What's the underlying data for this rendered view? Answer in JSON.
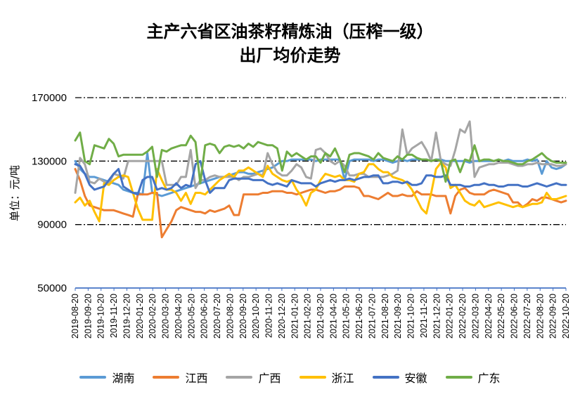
{
  "chart_data": {
    "type": "line",
    "title_lines": [
      "主产六省区油茶籽精炼油（压榨一级）",
      "出厂均价走势"
    ],
    "ylabel": "单位：元/吨",
    "ylim": [
      50000,
      170000
    ],
    "yticks": [
      50000,
      90000,
      130000,
      170000
    ],
    "ytick_labels": [
      "50000",
      "90000",
      "130000",
      "170000"
    ],
    "grid": "dash-dot horizontal at 90000, 130000, 170000",
    "legend_position": "bottom",
    "x_tick_labels": [
      "2019-08-20",
      "2019-09-20",
      "2019-10-20",
      "2019-11-20",
      "2019-12-20",
      "2020-01-20",
      "2020-02-20",
      "2020-03-20",
      "2020-04-20",
      "2020-05-20",
      "2020-06-20",
      "2020-07-20",
      "2020-08-20",
      "2020-09-20",
      "2020-10-20",
      "2020-11-20",
      "2020-12-20",
      "2021-01-20",
      "2021-02-20",
      "2021-03-20",
      "2021-04-20",
      "2021-05-20",
      "2021-06-20",
      "2021-07-20",
      "2021-08-20",
      "2021-09-20",
      "2021-10-20",
      "2021-11-20",
      "2021-12-20",
      "2022-01-20",
      "2022-02-20",
      "2022-03-20",
      "2022-04-20",
      "2022-05-20",
      "2022-06-20",
      "2022-07-20",
      "2022-08-20",
      "2022-09-20",
      "2022-10-20"
    ],
    "series": [
      {
        "name": "湖南",
        "color": "#5B9BD5",
        "values": [
          130000,
          125000,
          122000,
          120000,
          120000,
          119000,
          118000,
          117000,
          116000,
          115000,
          112000,
          111000,
          110000,
          110000,
          109000,
          135000,
          110000,
          109000,
          108000,
          109000,
          110000,
          111000,
          112000,
          113000,
          114000,
          115000,
          116000,
          117000,
          118000,
          119000,
          120000,
          120000,
          121000,
          122000,
          123000,
          123000,
          122000,
          122000,
          123000,
          124000,
          125000,
          126000,
          128000,
          130000,
          130000,
          131000,
          131000,
          131000,
          131000,
          131000,
          130000,
          131000,
          131000,
          131000,
          131000,
          131000,
          118000,
          130000,
          131000,
          131000,
          131000,
          131000,
          130000,
          131000,
          131000,
          130000,
          129000,
          130000,
          131000,
          130000,
          131000,
          131000,
          131000,
          131000,
          130000,
          131000,
          131000,
          130000,
          130000,
          130000,
          130000,
          130000,
          129000,
          130000,
          130000,
          130000,
          130000,
          130000,
          131000,
          130000,
          131000,
          130000,
          130000,
          130000,
          131000,
          130000,
          131000,
          122000,
          130000,
          126000,
          125000,
          126000,
          128000
        ]
      },
      {
        "name": "江西",
        "color": "#ED7D31",
        "values": [
          125000,
          118000,
          108000,
          102000,
          101000,
          100000,
          99000,
          99000,
          99000,
          98000,
          97000,
          96000,
          95000,
          109000,
          109000,
          109000,
          110000,
          110000,
          82000,
          87000,
          92000,
          99000,
          101000,
          100000,
          99000,
          98000,
          98000,
          97000,
          99000,
          98000,
          99000,
          100000,
          102000,
          96000,
          96000,
          109000,
          109000,
          109000,
          109000,
          110000,
          110000,
          111000,
          111000,
          111000,
          110000,
          110000,
          109000,
          110000,
          111000,
          112000,
          112000,
          111000,
          110000,
          111000,
          111000,
          112000,
          114000,
          114000,
          114000,
          113000,
          108000,
          108000,
          107000,
          106000,
          108000,
          110000,
          108000,
          108000,
          109000,
          108000,
          108000,
          111000,
          109000,
          109000,
          109000,
          108000,
          108000,
          108000,
          97000,
          108000,
          112000,
          113000,
          110000,
          109000,
          109000,
          109000,
          111000,
          112000,
          111000,
          110000,
          109000,
          104000,
          104000,
          101000,
          103000,
          106000,
          105000,
          107000,
          107000,
          106000,
          105000,
          104000,
          105000
        ]
      },
      {
        "name": "广西",
        "color": "#A5A5A5",
        "values": [
          110000,
          132000,
          128000,
          117000,
          116000,
          119000,
          117000,
          116000,
          122000,
          121000,
          119000,
          130000,
          130000,
          130000,
          130000,
          130000,
          130000,
          130000,
          130000,
          115000,
          115000,
          115000,
          120000,
          120000,
          137000,
          113000,
          118000,
          118000,
          120000,
          121000,
          120000,
          120000,
          120000,
          120000,
          118000,
          120000,
          120000,
          121000,
          122000,
          121000,
          135000,
          128000,
          123000,
          121000,
          121000,
          124000,
          128000,
          126000,
          120000,
          119000,
          137000,
          138000,
          135000,
          130000,
          128000,
          130000,
          127000,
          121000,
          121000,
          122000,
          122000,
          120000,
          120000,
          120000,
          120000,
          121000,
          122000,
          124000,
          150000,
          134000,
          138000,
          140000,
          142000,
          137000,
          130000,
          148000,
          130000,
          128000,
          127000,
          137000,
          150000,
          148000,
          155000,
          120000,
          126000,
          127000,
          128000,
          128000,
          129000,
          129000,
          129000,
          128000,
          127000,
          127000,
          128000,
          128000,
          129000,
          128000,
          128000,
          128000,
          127000,
          127000,
          128000
        ]
      },
      {
        "name": "浙江",
        "color": "#FFC000",
        "values": [
          104000,
          107000,
          102000,
          105000,
          98000,
          92000,
          116000,
          115000,
          118000,
          120000,
          121000,
          120000,
          110000,
          100000,
          93000,
          93000,
          93000,
          125000,
          118000,
          112000,
          112000,
          110000,
          105000,
          110000,
          103000,
          110000,
          110000,
          109000,
          112000,
          115000,
          118000,
          120000,
          122000,
          120000,
          124000,
          124000,
          126000,
          124000,
          122000,
          120000,
          127000,
          122000,
          120000,
          118000,
          117000,
          118000,
          112000,
          108000,
          102000,
          110000,
          112000,
          118000,
          122000,
          121000,
          120000,
          121000,
          118000,
          118000,
          117000,
          122000,
          123000,
          128000,
          128000,
          125000,
          123000,
          123000,
          120000,
          119000,
          118000,
          116000,
          112000,
          106000,
          100000,
          97000,
          110000,
          125000,
          129000,
          126000,
          113000,
          115000,
          110000,
          105000,
          103000,
          102000,
          105000,
          101000,
          102000,
          103000,
          104000,
          103000,
          102000,
          101000,
          102000,
          101000,
          102000,
          103000,
          103000,
          104000,
          110000,
          106000,
          106000,
          107000,
          108000
        ]
      },
      {
        "name": "安徽",
        "color": "#4472C4",
        "values": [
          128000,
          127000,
          122000,
          115000,
          112000,
          113000,
          114000,
          118000,
          122000,
          125000,
          114000,
          112000,
          110000,
          109000,
          118000,
          120000,
          120000,
          112000,
          113000,
          112000,
          113000,
          116000,
          113000,
          115000,
          114000,
          128000,
          130000,
          118000,
          110000,
          113000,
          113000,
          113000,
          118000,
          119000,
          119000,
          119000,
          119000,
          118000,
          118000,
          118000,
          116000,
          115000,
          116000,
          115000,
          114000,
          118000,
          117000,
          116000,
          116000,
          116000,
          114000,
          116000,
          117000,
          118000,
          117000,
          118000,
          118000,
          119000,
          118000,
          119000,
          120000,
          120000,
          121000,
          121000,
          116000,
          116000,
          117000,
          117000,
          116000,
          117000,
          115000,
          115000,
          116000,
          121000,
          121000,
          120000,
          120000,
          121000,
          115000,
          115000,
          115000,
          114000,
          114000,
          115000,
          115000,
          116000,
          115000,
          115000,
          114000,
          114000,
          115000,
          115000,
          115000,
          114000,
          114000,
          115000,
          116000,
          115000,
          114000,
          115000,
          116000,
          115000,
          115000
        ]
      },
      {
        "name": "广东",
        "color": "#70AD47",
        "values": [
          143000,
          148000,
          130000,
          128000,
          140000,
          139000,
          138000,
          144000,
          141000,
          133000,
          134000,
          134000,
          134000,
          134000,
          134000,
          136000,
          139000,
          120000,
          137000,
          136000,
          138000,
          139000,
          140000,
          140000,
          146000,
          142000,
          116000,
          140000,
          141000,
          140000,
          135000,
          139000,
          140000,
          139000,
          140000,
          138000,
          141000,
          139000,
          142000,
          141000,
          140000,
          140000,
          138000,
          124000,
          136000,
          133000,
          135000,
          133000,
          131000,
          133000,
          133000,
          129000,
          135000,
          133000,
          138000,
          131000,
          123000,
          134000,
          135000,
          135000,
          134000,
          133000,
          131000,
          135000,
          132000,
          131000,
          130000,
          133000,
          131000,
          134000,
          134000,
          132000,
          131000,
          131000,
          130000,
          131000,
          130000,
          117000,
          130000,
          131000,
          123000,
          131000,
          130000,
          140000,
          130000,
          131000,
          131000,
          130000,
          131000,
          130000,
          130000,
          129000,
          128000,
          128000,
          130000,
          131000,
          133000,
          135000,
          132000,
          130000,
          129000,
          129000,
          129000
        ]
      }
    ]
  }
}
